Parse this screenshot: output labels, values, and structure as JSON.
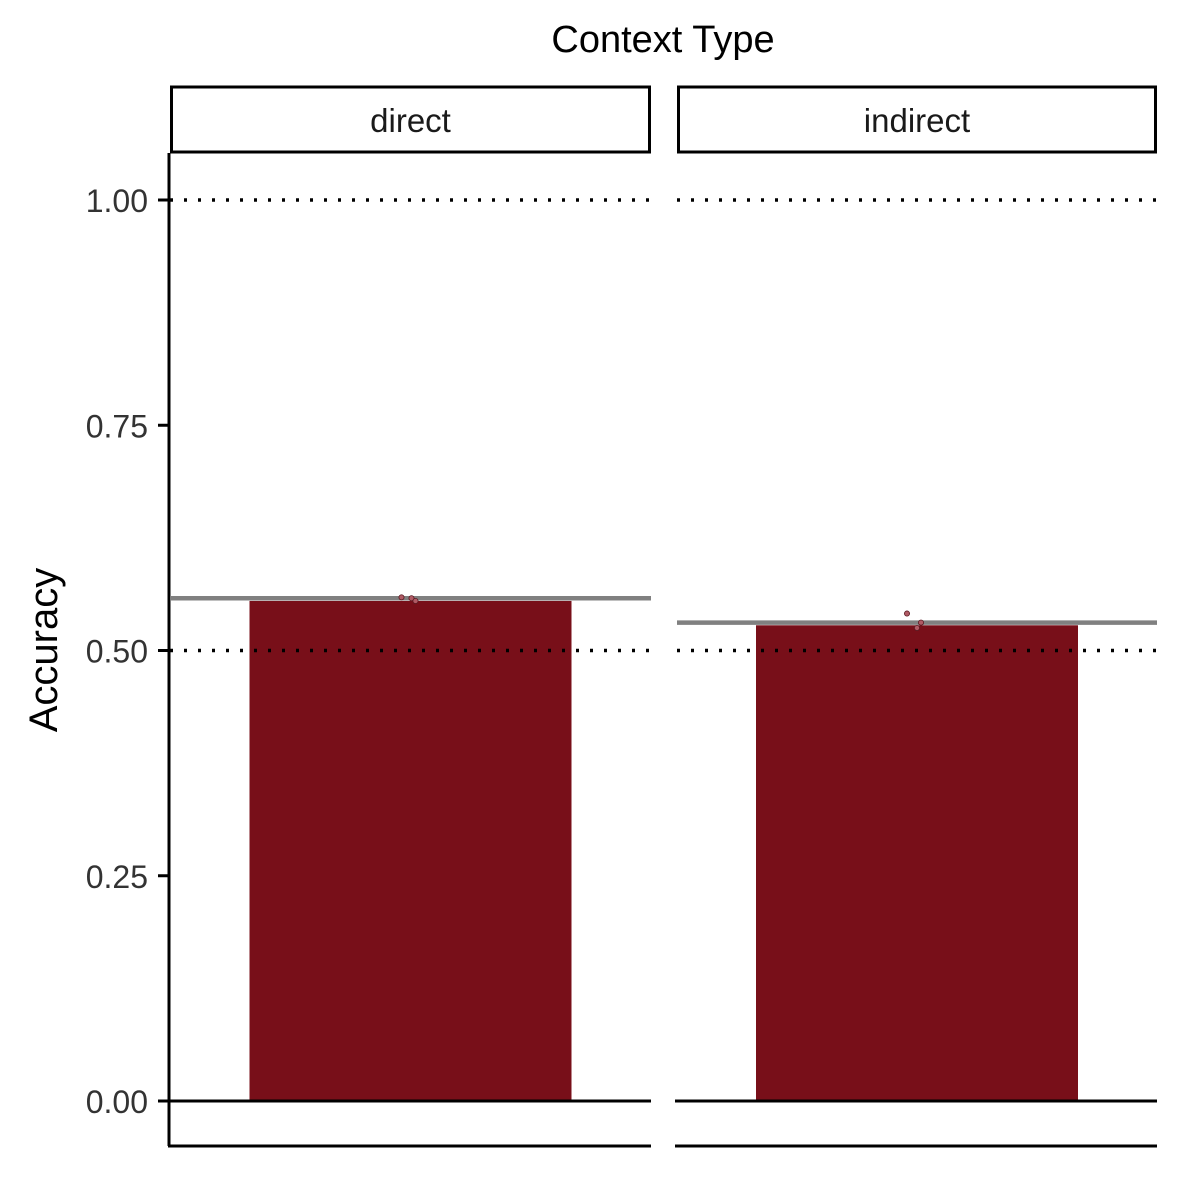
{
  "chart_data": {
    "type": "bar",
    "title": "Context Type",
    "xlabel": "",
    "ylabel": "Accuracy",
    "ylim": [
      -0.05,
      1.05
    ],
    "yticks": [
      "0.00",
      "0.25",
      "0.50",
      "0.75",
      "1.00"
    ],
    "ytick_values": [
      0,
      0.25,
      0.5,
      0.75,
      1.0
    ],
    "reference_lines": [
      0,
      0.5,
      1.0
    ],
    "grid": false,
    "bar_color": "#780f19",
    "mean_line_color": "#808080",
    "panels": [
      {
        "label": "direct",
        "value": 0.555,
        "mean_line": 0.558,
        "points": [
          0.559,
          0.558,
          0.555
        ]
      },
      {
        "label": "indirect",
        "value": 0.528,
        "mean_line": 0.531,
        "points": [
          0.541,
          0.525,
          0.531
        ]
      }
    ]
  }
}
